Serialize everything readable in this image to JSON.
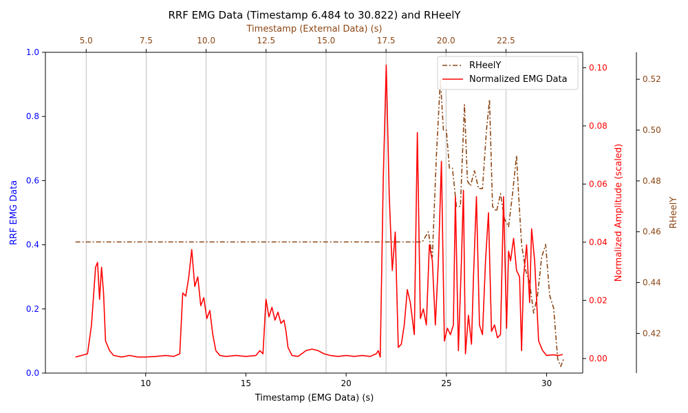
{
  "chart_data": {
    "type": "line",
    "title": "RRF EMG Data (Timestamp 6.484 to 30.822) and RHeelY",
    "xlabel": "Timestamp (EMG Data) (s)",
    "xlabel_top": "Timestamp (External Data) (s)",
    "ylabel": "RRF EMG Data",
    "ylabel_right": "Normalized Amplitude (scaled)",
    "ylabel_far_right": "RHeelY",
    "xlim": [
      5.0,
      31.8
    ],
    "ylim": [
      0.0,
      1.0
    ],
    "xlim_top": [
      3.3,
      25.7
    ],
    "ylim_right": [
      -0.005,
      0.1053
    ],
    "ylim_far_right": [
      0.4044,
      0.5306
    ],
    "x_ticks": [
      10,
      15,
      20,
      25,
      30
    ],
    "x_ticks_top": [
      5.0,
      7.5,
      10.0,
      12.5,
      15.0,
      17.5,
      20.0,
      22.5
    ],
    "y_ticks": [
      0.0,
      0.2,
      0.4,
      0.6,
      0.8,
      1.0
    ],
    "y_ticks_right": [
      0.0,
      0.02,
      0.04,
      0.06,
      0.08,
      0.1
    ],
    "y_ticks_far_right": [
      0.42,
      0.44,
      0.46,
      0.48,
      0.5,
      0.52
    ],
    "grid": "vertical lines at top-axis ticks",
    "legend": "top-right",
    "colors": {
      "left_axis": "#0000ff",
      "right_axis": "#ff0000",
      "far_right_axis": "#8b4513",
      "top_axis": "#8b4513",
      "emg_line": "#ff0000",
      "rheel_line": "#8b4513"
    },
    "series": [
      {
        "name": "RHeelY",
        "axis": "far_right",
        "style": "dash-dot",
        "x": [
          6.5,
          7.0,
          10.0,
          15.0,
          20.0,
          23.0,
          23.8,
          24.1,
          24.3,
          24.5,
          24.7,
          24.85,
          25.0,
          25.15,
          25.3,
          25.5,
          25.7,
          25.9,
          26.05,
          26.2,
          26.4,
          26.6,
          26.8,
          27.0,
          27.15,
          27.3,
          27.5,
          27.7,
          27.9,
          28.1,
          28.3,
          28.5,
          28.6,
          28.75,
          28.95,
          29.15,
          29.35,
          29.55,
          29.75,
          29.95,
          30.15,
          30.35,
          30.55,
          30.7,
          30.85
        ],
        "y": [
          0.456,
          0.456,
          0.456,
          0.456,
          0.456,
          0.456,
          0.456,
          0.46,
          0.45,
          0.49,
          0.52,
          0.5,
          0.5,
          0.485,
          0.485,
          0.47,
          0.47,
          0.51,
          0.48,
          0.478,
          0.484,
          0.477,
          0.477,
          0.5,
          0.512,
          0.47,
          0.468,
          0.475,
          0.465,
          0.462,
          0.475,
          0.49,
          0.475,
          0.455,
          0.445,
          0.44,
          0.428,
          0.435,
          0.45,
          0.455,
          0.435,
          0.43,
          0.41,
          0.407,
          0.41
        ]
      },
      {
        "name": "Normalized EMG Data",
        "axis": "left",
        "style": "solid",
        "x": [
          6.5,
          6.8,
          7.1,
          7.3,
          7.5,
          7.6,
          7.7,
          7.8,
          7.9,
          8.0,
          8.2,
          8.4,
          8.8,
          9.2,
          9.6,
          10.0,
          10.5,
          11.0,
          11.4,
          11.7,
          11.85,
          12.0,
          12.15,
          12.3,
          12.45,
          12.6,
          12.75,
          12.9,
          13.05,
          13.2,
          13.35,
          13.5,
          13.7,
          14.0,
          14.5,
          15.0,
          15.5,
          15.7,
          15.85,
          16.0,
          16.15,
          16.3,
          16.45,
          16.6,
          16.75,
          16.9,
          17.0,
          17.1,
          17.3,
          17.6,
          18.0,
          18.3,
          18.6,
          18.9,
          19.2,
          19.6,
          20.0,
          20.4,
          20.8,
          21.2,
          21.5,
          21.6,
          21.7,
          21.85,
          22.0,
          22.15,
          22.3,
          22.45,
          22.6,
          22.75,
          22.9,
          23.05,
          23.2,
          23.4,
          23.55,
          23.7,
          23.85,
          24.0,
          24.15,
          24.3,
          24.45,
          24.6,
          24.75,
          24.9,
          25.05,
          25.2,
          25.35,
          25.45,
          25.6,
          25.75,
          25.85,
          25.95,
          26.1,
          26.25,
          26.35,
          26.5,
          26.65,
          26.8,
          26.95,
          27.1,
          27.25,
          27.4,
          27.55,
          27.7,
          27.85,
          28.0,
          28.1,
          28.2,
          28.35,
          28.5,
          28.65,
          28.75,
          28.85,
          29.0,
          29.15,
          29.25,
          29.4,
          29.6,
          29.8,
          30.0,
          30.3,
          30.6,
          30.8
        ],
        "y": [
          0.05,
          0.055,
          0.06,
          0.15,
          0.33,
          0.345,
          0.23,
          0.33,
          0.25,
          0.1,
          0.07,
          0.055,
          0.05,
          0.055,
          0.05,
          0.05,
          0.052,
          0.055,
          0.052,
          0.06,
          0.25,
          0.24,
          0.3,
          0.385,
          0.27,
          0.3,
          0.21,
          0.235,
          0.17,
          0.195,
          0.12,
          0.07,
          0.055,
          0.052,
          0.055,
          0.052,
          0.055,
          0.07,
          0.06,
          0.23,
          0.175,
          0.205,
          0.165,
          0.19,
          0.155,
          0.165,
          0.13,
          0.08,
          0.055,
          0.052,
          0.07,
          0.075,
          0.07,
          0.06,
          0.055,
          0.052,
          0.055,
          0.052,
          0.055,
          0.052,
          0.06,
          0.07,
          0.05,
          0.6,
          0.96,
          0.55,
          0.32,
          0.44,
          0.08,
          0.09,
          0.15,
          0.26,
          0.22,
          0.12,
          0.75,
          0.17,
          0.2,
          0.15,
          0.4,
          0.35,
          0.15,
          0.35,
          0.66,
          0.1,
          0.14,
          0.12,
          0.15,
          0.55,
          0.07,
          0.35,
          0.57,
          0.06,
          0.18,
          0.09,
          0.3,
          0.55,
          0.15,
          0.12,
          0.35,
          0.5,
          0.13,
          0.15,
          0.11,
          0.12,
          0.55,
          0.14,
          0.38,
          0.35,
          0.42,
          0.32,
          0.3,
          0.07,
          0.3,
          0.4,
          0.22,
          0.45,
          0.35,
          0.1,
          0.07,
          0.055,
          0.057,
          0.055,
          0.058
        ]
      }
    ]
  }
}
